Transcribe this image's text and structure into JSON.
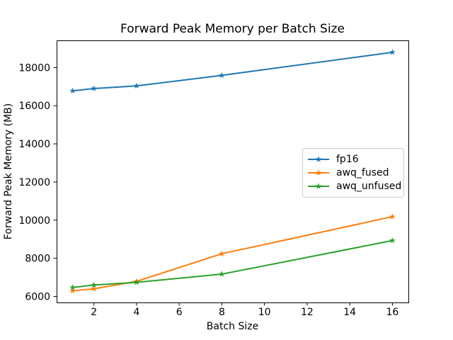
{
  "figure": {
    "background_color": "#ffffff",
    "axes_edge_color": "#000000",
    "text_color": "#000000"
  },
  "chart_data": {
    "type": "line",
    "title": "Forward Peak Memory per Batch Size",
    "xlabel": "Batch Size",
    "ylabel": "Forward Peak Memory (MB)",
    "x": [
      1,
      2,
      4,
      8,
      16
    ],
    "series": [
      {
        "name": "fp16",
        "color": "#1f77b4",
        "marker": "star",
        "values": [
          16780,
          16900,
          17040,
          17590,
          18800
        ]
      },
      {
        "name": "awq_fused",
        "color": "#ff7f0e",
        "marker": "star",
        "values": [
          6300,
          6400,
          6790,
          8240,
          10180
        ]
      },
      {
        "name": "awq_unfused",
        "color": "#2ca02c",
        "marker": "star",
        "values": [
          6470,
          6600,
          6740,
          7170,
          8930
        ]
      }
    ],
    "xticks": [
      2,
      4,
      6,
      8,
      10,
      12,
      14,
      16
    ],
    "yticks": [
      6000,
      8000,
      10000,
      12000,
      14000,
      16000,
      18000
    ],
    "xlim": [
      0.25,
      16.75
    ],
    "ylim": [
      5685,
      19425
    ],
    "grid": false,
    "legend_position": "center-right",
    "legend_entries": [
      "fp16",
      "awq_fused",
      "awq_unfused"
    ]
  }
}
